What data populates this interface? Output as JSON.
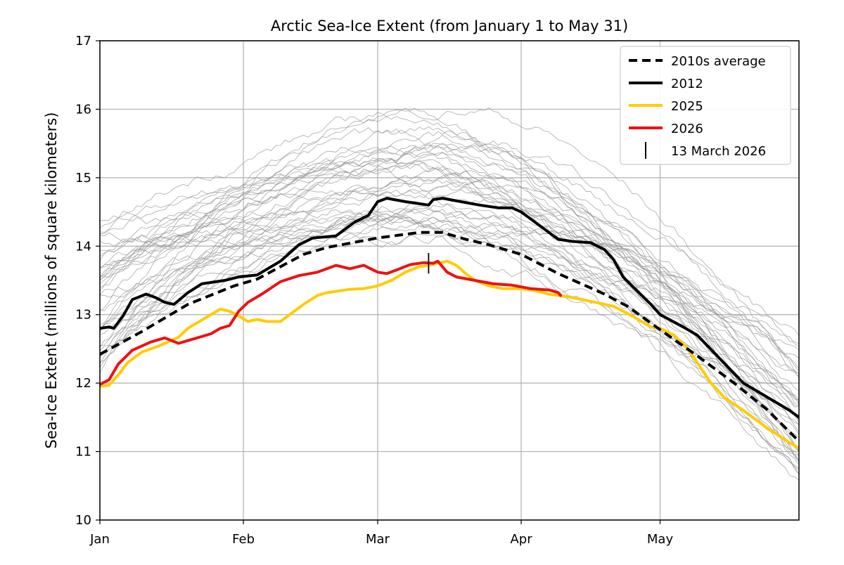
{
  "chart_data": {
    "type": "line",
    "title": "Arctic Sea-Ice Extent (from January 1 to May 31)",
    "xlabel": "",
    "ylabel": "Sea-Ice Extent (millions of square kilometers)",
    "x_unit": "day of year",
    "xlim": [
      1,
      152
    ],
    "ylim": [
      10,
      17
    ],
    "y_ticks": [
      10,
      11,
      12,
      13,
      14,
      15,
      16,
      17
    ],
    "x_ticks": [
      {
        "day": 1,
        "label": "Jan"
      },
      {
        "day": 32,
        "label": "Feb"
      },
      {
        "day": 61,
        "label": "Mar"
      },
      {
        "day": 92,
        "label": "Apr"
      },
      {
        "day": 122,
        "label": "May"
      }
    ],
    "grid": true,
    "legend_position": "top-right",
    "colors": {
      "historical": "#9a9a9a",
      "avg2010s": "#000000",
      "y2012": "#000000",
      "y2025": "#ffcc00",
      "y2026": "#ee1111",
      "marker": "#000000"
    },
    "series": [
      {
        "name": "2010s average",
        "style": "dashed",
        "points": [
          [
            1,
            12.42
          ],
          [
            10,
            12.75
          ],
          [
            20,
            13.15
          ],
          [
            30,
            13.42
          ],
          [
            35,
            13.52
          ],
          [
            45,
            13.88
          ],
          [
            50,
            13.98
          ],
          [
            61,
            14.12
          ],
          [
            70,
            14.2
          ],
          [
            75,
            14.2
          ],
          [
            80,
            14.1
          ],
          [
            85,
            14.02
          ],
          [
            92,
            13.88
          ],
          [
            100,
            13.6
          ],
          [
            110,
            13.3
          ],
          [
            115,
            13.12
          ],
          [
            122,
            12.78
          ],
          [
            130,
            12.4
          ],
          [
            138,
            12.0
          ],
          [
            145,
            11.62
          ],
          [
            152,
            11.15
          ]
        ]
      },
      {
        "name": "2012",
        "style": "solid",
        "points": [
          [
            1,
            12.8
          ],
          [
            3,
            12.82
          ],
          [
            4,
            12.8
          ],
          [
            6,
            12.98
          ],
          [
            8,
            13.22
          ],
          [
            11,
            13.3
          ],
          [
            13,
            13.25
          ],
          [
            15,
            13.18
          ],
          [
            17,
            13.15
          ],
          [
            20,
            13.32
          ],
          [
            23,
            13.45
          ],
          [
            28,
            13.5
          ],
          [
            31,
            13.55
          ],
          [
            35,
            13.58
          ],
          [
            40,
            13.78
          ],
          [
            44,
            14.02
          ],
          [
            47,
            14.12
          ],
          [
            52,
            14.15
          ],
          [
            56,
            14.35
          ],
          [
            59,
            14.45
          ],
          [
            61,
            14.65
          ],
          [
            63,
            14.7
          ],
          [
            67,
            14.65
          ],
          [
            70,
            14.62
          ],
          [
            72,
            14.6
          ],
          [
            73,
            14.68
          ],
          [
            75,
            14.7
          ],
          [
            79,
            14.65
          ],
          [
            83,
            14.6
          ],
          [
            87,
            14.56
          ],
          [
            90,
            14.56
          ],
          [
            92,
            14.5
          ],
          [
            94,
            14.4
          ],
          [
            96,
            14.3
          ],
          [
            98,
            14.2
          ],
          [
            100,
            14.1
          ],
          [
            103,
            14.07
          ],
          [
            107,
            14.05
          ],
          [
            110,
            13.95
          ],
          [
            112,
            13.8
          ],
          [
            114,
            13.55
          ],
          [
            117,
            13.35
          ],
          [
            120,
            13.15
          ],
          [
            122,
            13.0
          ],
          [
            127,
            12.82
          ],
          [
            130,
            12.7
          ],
          [
            135,
            12.35
          ],
          [
            140,
            12.0
          ],
          [
            145,
            11.8
          ],
          [
            150,
            11.6
          ],
          [
            152,
            11.5
          ]
        ]
      },
      {
        "name": "2025",
        "style": "solid",
        "points": [
          [
            1,
            11.95
          ],
          [
            3,
            11.97
          ],
          [
            5,
            12.12
          ],
          [
            7,
            12.3
          ],
          [
            10,
            12.45
          ],
          [
            14,
            12.55
          ],
          [
            18,
            12.67
          ],
          [
            20,
            12.8
          ],
          [
            25,
            13.0
          ],
          [
            27,
            13.08
          ],
          [
            29,
            13.05
          ],
          [
            31,
            12.98
          ],
          [
            33,
            12.9
          ],
          [
            35,
            12.93
          ],
          [
            37,
            12.9
          ],
          [
            40,
            12.9
          ],
          [
            42,
            13.0
          ],
          [
            45,
            13.15
          ],
          [
            48,
            13.28
          ],
          [
            50,
            13.32
          ],
          [
            55,
            13.37
          ],
          [
            58,
            13.38
          ],
          [
            61,
            13.42
          ],
          [
            64,
            13.5
          ],
          [
            67,
            13.62
          ],
          [
            70,
            13.7
          ],
          [
            72,
            13.72
          ],
          [
            76,
            13.78
          ],
          [
            78,
            13.72
          ],
          [
            80,
            13.6
          ],
          [
            82,
            13.5
          ],
          [
            85,
            13.42
          ],
          [
            88,
            13.38
          ],
          [
            92,
            13.38
          ],
          [
            95,
            13.35
          ],
          [
            98,
            13.3
          ],
          [
            103,
            13.25
          ],
          [
            108,
            13.18
          ],
          [
            112,
            13.12
          ],
          [
            116,
            12.98
          ],
          [
            120,
            12.82
          ],
          [
            122,
            12.8
          ],
          [
            125,
            12.7
          ],
          [
            128,
            12.5
          ],
          [
            131,
            12.2
          ],
          [
            133,
            12.0
          ],
          [
            136,
            11.78
          ],
          [
            140,
            11.6
          ],
          [
            145,
            11.35
          ],
          [
            150,
            11.13
          ],
          [
            152,
            11.05
          ]
        ]
      },
      {
        "name": "2026",
        "style": "solid",
        "points": [
          [
            1,
            11.98
          ],
          [
            3,
            12.05
          ],
          [
            5,
            12.28
          ],
          [
            8,
            12.48
          ],
          [
            12,
            12.6
          ],
          [
            15,
            12.66
          ],
          [
            18,
            12.58
          ],
          [
            20,
            12.62
          ],
          [
            25,
            12.72
          ],
          [
            27,
            12.8
          ],
          [
            29,
            12.84
          ],
          [
            31,
            13.05
          ],
          [
            33,
            13.18
          ],
          [
            36,
            13.3
          ],
          [
            40,
            13.48
          ],
          [
            44,
            13.57
          ],
          [
            48,
            13.62
          ],
          [
            52,
            13.72
          ],
          [
            55,
            13.67
          ],
          [
            58,
            13.72
          ],
          [
            61,
            13.62
          ],
          [
            63,
            13.6
          ],
          [
            65,
            13.65
          ],
          [
            68,
            13.73
          ],
          [
            71,
            13.76
          ],
          [
            73,
            13.75
          ],
          [
            74,
            13.78
          ],
          [
            76,
            13.62
          ],
          [
            78,
            13.55
          ],
          [
            82,
            13.5
          ],
          [
            86,
            13.45
          ],
          [
            90,
            13.43
          ],
          [
            94,
            13.38
          ],
          [
            96,
            13.37
          ],
          [
            98,
            13.36
          ],
          [
            100,
            13.32
          ],
          [
            100.5,
            13.28
          ]
        ]
      }
    ],
    "annotation": {
      "label": "13 March 2026",
      "day": 72,
      "y_from": 13.6,
      "y_to": 13.9
    },
    "historical_background_series": "approximately 40 thin grey lines for earlier years (1979–2024), not individually labeled"
  }
}
